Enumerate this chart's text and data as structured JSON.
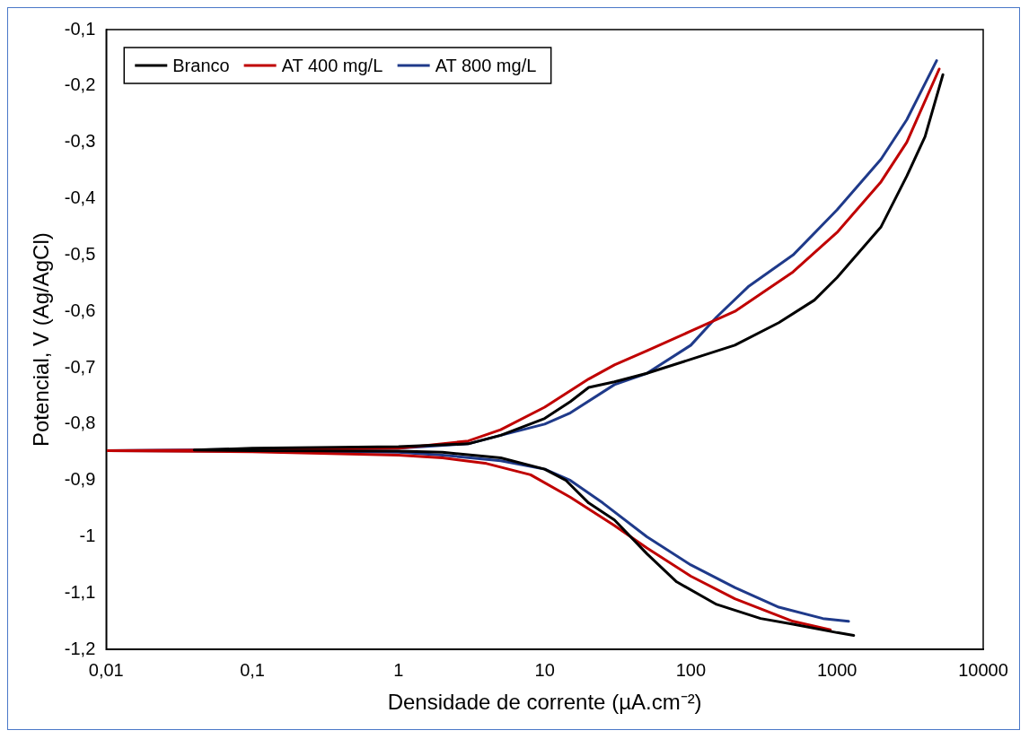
{
  "chart_data": {
    "type": "line",
    "xlabel": "Densidade de corrente (µA.cm⁻²)",
    "ylabel": "Potencial, V (Ag/AgCl)",
    "log": "x",
    "grid": false,
    "legend": "top left",
    "marker": "none",
    "line_style": "solid",
    "xlim": [
      0.01,
      10000
    ],
    "xticks": [
      {
        "value": 0.01,
        "label": "0,01"
      },
      {
        "value": 0.1,
        "label": "0,1"
      },
      1,
      10,
      100,
      1000,
      10000
    ],
    "ylim": [
      -1.2,
      -0.1
    ],
    "yticks": [
      {
        "value": -1.2,
        "label": "-1,2"
      },
      {
        "value": -1.1,
        "label": "-1,1"
      },
      -1,
      {
        "value": -0.9,
        "label": "-0,9"
      },
      {
        "value": -0.8,
        "label": "-0,8"
      },
      {
        "value": -0.7,
        "label": "-0,7"
      },
      {
        "value": -0.6,
        "label": "-0,6"
      },
      {
        "value": -0.5,
        "label": "-0,5"
      },
      {
        "value": -0.4,
        "label": "-0,4"
      },
      {
        "value": -0.3,
        "label": "-0,3"
      },
      {
        "value": -0.2,
        "label": "-0,2"
      },
      {
        "value": -0.1,
        "label": "-0,1"
      }
    ],
    "series": [
      {
        "name": "Branco",
        "color": "#000000",
        "x": [
          1300,
          1000,
          500,
          300,
          150,
          80,
          50,
          30,
          20,
          14,
          10,
          5,
          2,
          1,
          0.1,
          0.04,
          0.1,
          1,
          3,
          5,
          10,
          15,
          20,
          30,
          50,
          100,
          200,
          400,
          700,
          1000,
          2000,
          3000,
          4000,
          5300
        ],
        "values": [
          -1.175,
          -1.17,
          -1.155,
          -1.145,
          -1.12,
          -1.08,
          -1.03,
          -0.97,
          -0.94,
          -0.9,
          -0.88,
          -0.86,
          -0.85,
          -0.848,
          -0.847,
          -0.846,
          -0.843,
          -0.84,
          -0.835,
          -0.82,
          -0.79,
          -0.76,
          -0.735,
          -0.725,
          -0.71,
          -0.685,
          -0.66,
          -0.62,
          -0.58,
          -0.54,
          -0.45,
          -0.36,
          -0.29,
          -0.18
        ]
      },
      {
        "name": "AT 400 mg/L",
        "color": "#c00000",
        "x": [
          900,
          500,
          200,
          100,
          50,
          30,
          15,
          8,
          4,
          2,
          1,
          0.1,
          0.01,
          0.1,
          1,
          3,
          5,
          10,
          20,
          30,
          50,
          100,
          200,
          500,
          1000,
          2000,
          3000,
          5000
        ],
        "values": [
          -1.165,
          -1.15,
          -1.11,
          -1.07,
          -1.02,
          -0.98,
          -0.93,
          -0.89,
          -0.87,
          -0.86,
          -0.855,
          -0.849,
          -0.847,
          -0.846,
          -0.843,
          -0.83,
          -0.81,
          -0.77,
          -0.72,
          -0.695,
          -0.67,
          -0.635,
          -0.6,
          -0.53,
          -0.46,
          -0.37,
          -0.3,
          -0.17
        ]
      },
      {
        "name": "AT 800 mg/L",
        "color": "#1f3a8a",
        "x": [
          1200,
          800,
          400,
          200,
          100,
          50,
          25,
          15,
          10,
          5,
          2,
          1,
          0.1,
          0.01,
          0.1,
          1,
          3,
          5,
          10,
          15,
          30,
          50,
          100,
          150,
          250,
          500,
          1000,
          2000,
          3000,
          4800
        ],
        "values": [
          -1.15,
          -1.145,
          -1.125,
          -1.09,
          -1.05,
          -1.0,
          -0.94,
          -0.9,
          -0.88,
          -0.865,
          -0.855,
          -0.85,
          -0.848,
          -0.847,
          -0.845,
          -0.843,
          -0.835,
          -0.82,
          -0.8,
          -0.78,
          -0.73,
          -0.71,
          -0.66,
          -0.61,
          -0.555,
          -0.5,
          -0.42,
          -0.33,
          -0.26,
          -0.155
        ]
      }
    ]
  }
}
